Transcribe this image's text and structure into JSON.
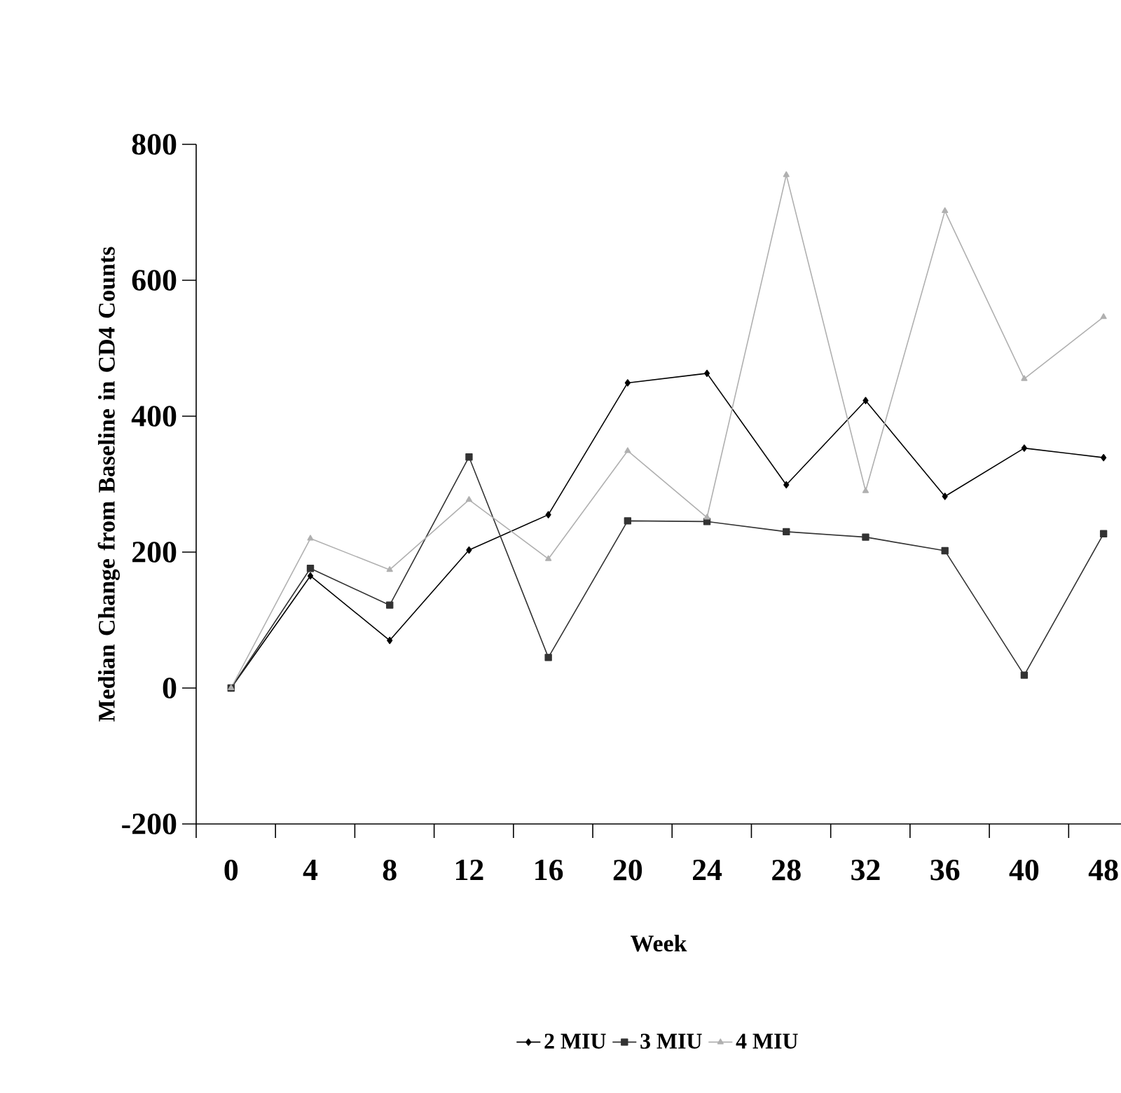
{
  "chart_data": {
    "type": "line",
    "xlabel": "Week",
    "ylabel": "Median Change from Baseline in CD4 Counts",
    "categories": [
      "0",
      "4",
      "8",
      "12",
      "16",
      "20",
      "24",
      "28",
      "32",
      "36",
      "40",
      "48"
    ],
    "series": [
      {
        "name": "2 MIU",
        "color": "#000000",
        "marker": "diamond",
        "values": [
          0,
          165,
          70,
          203,
          255,
          449,
          463,
          299,
          423,
          282,
          353,
          339
        ]
      },
      {
        "name": "3 MIU",
        "color": "#333333",
        "marker": "square",
        "values": [
          0,
          176,
          122,
          340,
          45,
          246,
          245,
          230,
          222,
          202,
          19,
          227
        ]
      },
      {
        "name": "4 MIU",
        "color": "#b0b0b0",
        "marker": "triangle",
        "values": [
          0,
          220,
          174,
          277,
          190,
          349,
          251,
          755,
          290,
          702,
          455,
          546
        ]
      }
    ],
    "ylim": [
      -200,
      800
    ],
    "yticks": [
      -200,
      0,
      200,
      400,
      600,
      800
    ],
    "grid": false,
    "legend": "bottom",
    "line_style": "solid"
  }
}
